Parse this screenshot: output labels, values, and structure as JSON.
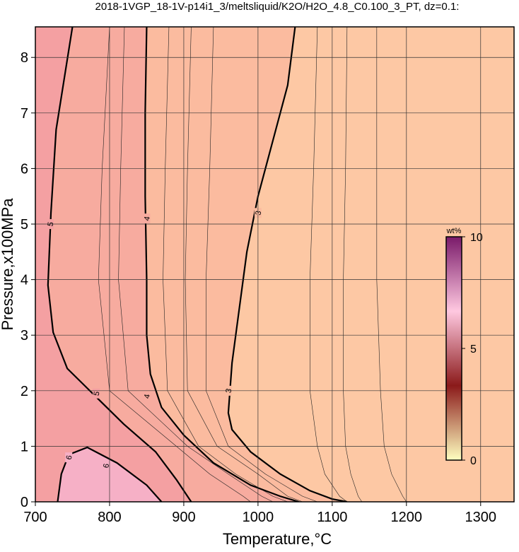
{
  "chart_data": {
    "type": "contour",
    "title": "2018-1VGP_18-1V-p14i1_3/meltsliquid/K2O/H2O_4.8_C0.100_3_PT, dz=0.1:",
    "x_label": "Temperature,°C",
    "y_label": "Pressure,x100MPa",
    "xlim": [
      700,
      1345
    ],
    "ylim": [
      0,
      8.55
    ],
    "xticks": [
      700,
      800,
      900,
      1000,
      1100,
      1200,
      1300
    ],
    "yticks": [
      0,
      1,
      2,
      3,
      4,
      5,
      6,
      7,
      8
    ],
    "grid": true,
    "background": "#fdc8a4",
    "contours": [
      {
        "level": 3,
        "fill": "#fbbb9f",
        "x": [
          1050,
          1040,
          1020,
          1000,
          985,
          975,
          965,
          960,
          965,
          990,
          1030,
          1070,
          1100,
          1120
        ],
        "y": [
          8.55,
          7.5,
          6.5,
          5.5,
          4.5,
          3.5,
          2.5,
          1.6,
          1.3,
          0.9,
          0.5,
          0.2,
          0.05,
          0
        ],
        "label_at": [
          [
            1000,
            5.2
          ],
          [
            960,
            2.0
          ]
        ]
      },
      {
        "level": 4,
        "fill": "#f7ab9f",
        "x": [
          850,
          848,
          848,
          850,
          850,
          855,
          870,
          900,
          940,
          990,
          1030,
          1055
        ],
        "y": [
          8.55,
          7,
          5.5,
          4,
          3,
          2.3,
          1.7,
          1.2,
          0.7,
          0.3,
          0.1,
          0
        ],
        "label_at": [
          [
            850,
            5.1
          ],
          [
            850,
            1.9
          ]
        ]
      },
      {
        "level": 5,
        "fill": "#f4a0a2",
        "x": [
          750,
          728,
          721,
          717,
          724,
          743,
          781,
          819,
          862,
          890,
          910
        ],
        "y": [
          8.55,
          6.7,
          5.2,
          3.9,
          3.05,
          2.4,
          1.9,
          1.4,
          0.9,
          0.4,
          0
        ],
        "label_at": [
          [
            720,
            5.0
          ],
          [
            782,
            1.95
          ]
        ]
      },
      {
        "level": 6,
        "fill": "#f6b0c6",
        "x": [
          730,
          735,
          745,
          770,
          810,
          850,
          870
        ],
        "y": [
          0,
          0.5,
          0.85,
          0.98,
          0.7,
          0.3,
          0
        ],
        "label_at": [
          [
            745,
            0.8
          ],
          [
            795,
            0.65
          ]
        ]
      }
    ],
    "minor_contours": {
      "y": [
        8.55,
        6,
        4,
        2,
        1,
        0.5,
        0.1,
        0
      ],
      "x": [
        [
          800,
          790,
          785,
          800,
          890,
          935,
          980,
          990
        ],
        [
          820,
          815,
          812,
          825,
          905,
          960,
          1005,
          1020
        ],
        [
          880,
          875,
          872,
          878,
          920,
          970,
          1020,
          1040
        ],
        [
          910,
          905,
          902,
          905,
          945,
          1000,
          1040,
          1060
        ],
        [
          940,
          935,
          930,
          930,
          960,
          1010,
          1060,
          1080
        ],
        [
          1080,
          1075,
          1070,
          1070,
          1080,
          1090,
          1110,
          1120
        ],
        [
          1120,
          1118,
          1115,
          1115,
          1118,
          1125,
          1135,
          1140
        ],
        [
          1160,
          1160,
          1160,
          1165,
          1170,
          1180,
          1195,
          1200
        ]
      ]
    },
    "colorbar": {
      "label": "wt%",
      "lim": [
        0,
        10
      ],
      "ticks": [
        0,
        5,
        10
      ],
      "colors": [
        "#ffffc0",
        "#8b1a1a",
        "#ffc8e0",
        "#7a1a6a"
      ]
    }
  }
}
